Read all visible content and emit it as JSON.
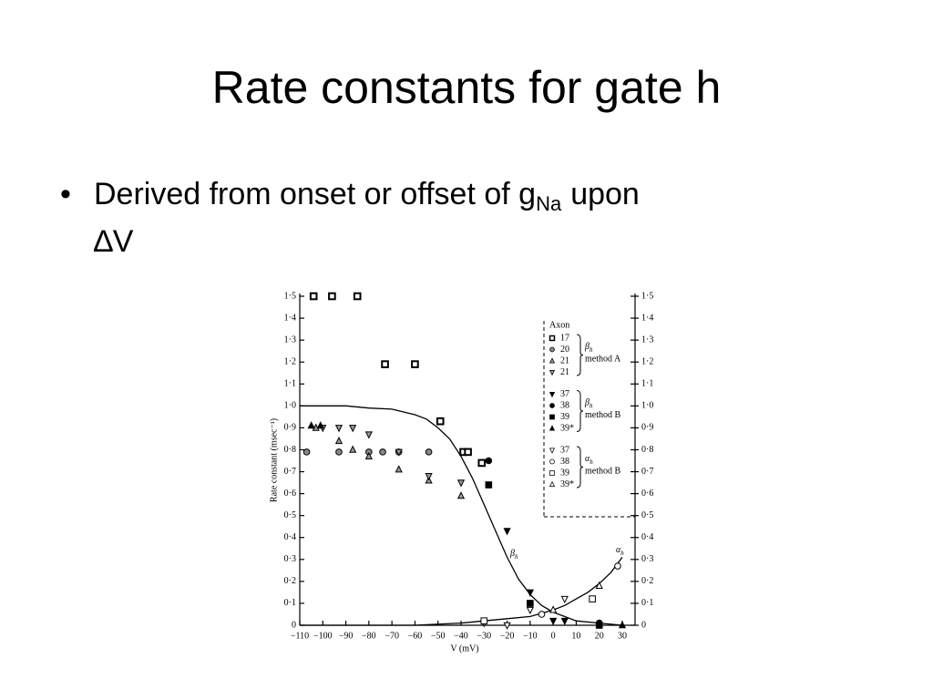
{
  "title": "Rate constants for gate h",
  "bullet": {
    "text": "Derived from onset or offset of g",
    "sub": "Na",
    "text2": "upon",
    "line2": "∆V"
  },
  "chart_data": {
    "type": "scatter",
    "ylabel": "Rate constant (msec⁻¹)",
    "xlabel": "V (mV)",
    "xlim": [
      -110,
      30
    ],
    "xticks": [
      {
        "value": -110,
        "label": "−110"
      },
      {
        "value": -100,
        "label": "−100"
      },
      {
        "value": -90,
        "label": "−90"
      },
      {
        "value": -80,
        "label": "−80"
      },
      {
        "value": -70,
        "label": "−70"
      },
      {
        "value": -60,
        "label": "−60"
      },
      {
        "value": -50,
        "label": "−50"
      },
      {
        "value": -40,
        "label": "−40"
      },
      {
        "value": -30,
        "label": "−30"
      },
      {
        "value": -20,
        "label": "−20"
      },
      {
        "value": -10,
        "label": "−10"
      },
      0,
      10,
      20,
      30
    ],
    "ylim": [
      0,
      1.5
    ],
    "yticks": [
      0,
      {
        "value": 0.1,
        "label": "0·1"
      },
      {
        "value": 0.2,
        "label": "0·2"
      },
      {
        "value": 0.3,
        "label": "0·3"
      },
      {
        "value": 0.4,
        "label": "0·4"
      },
      {
        "value": 0.5,
        "label": "0·5"
      },
      {
        "value": 0.6,
        "label": "0·6"
      },
      {
        "value": 0.7,
        "label": "0·7"
      },
      {
        "value": 0.8,
        "label": "0·8"
      },
      {
        "value": 0.9,
        "label": "0·9"
      },
      {
        "value": 1.0,
        "label": "1·0"
      },
      {
        "value": 1.1,
        "label": "1·1"
      },
      {
        "value": 1.2,
        "label": "1·2"
      },
      {
        "value": 1.3,
        "label": "1·3"
      },
      {
        "value": 1.4,
        "label": "1·4"
      },
      {
        "value": 1.5,
        "label": "1·5"
      }
    ],
    "y2lim": [
      0,
      1.5
    ],
    "y2ticks": [
      0,
      {
        "value": 0.1,
        "label": "0·1"
      },
      {
        "value": 0.2,
        "label": "0·2"
      },
      {
        "value": 0.3,
        "label": "0·3"
      },
      {
        "value": 0.4,
        "label": "0·4"
      },
      {
        "value": 0.5,
        "label": "0·5"
      },
      {
        "value": 0.6,
        "label": "0·6"
      },
      {
        "value": 0.7,
        "label": "0·7"
      },
      {
        "value": 0.8,
        "label": "0·8"
      },
      {
        "value": 0.9,
        "label": "0·9"
      },
      {
        "value": 1.0,
        "label": "1·0"
      },
      {
        "value": 1.1,
        "label": "1·1"
      },
      {
        "value": 1.2,
        "label": "1·2"
      },
      {
        "value": 1.3,
        "label": "1·3"
      },
      {
        "value": 1.4,
        "label": "1·4"
      },
      {
        "value": 1.5,
        "label": "1·5"
      }
    ],
    "legend_title": "Axon",
    "legend_groups": [
      {
        "symbol": "β",
        "sub": "h",
        "method": "method A"
      },
      {
        "symbol": "β",
        "sub": "h",
        "method": "method B"
      },
      {
        "symbol": "α",
        "sub": "h",
        "method": "method B"
      }
    ],
    "series": [
      {
        "name": "17",
        "color": "#000",
        "marker": "square-dot",
        "x": [
          -104,
          -96,
          -85,
          -73,
          -60,
          -49,
          -39,
          -37,
          -31
        ],
        "values": [
          1.5,
          1.5,
          1.5,
          1.19,
          1.19,
          0.93,
          0.79,
          0.79,
          0.74
        ]
      },
      {
        "name": "20",
        "color": "#000",
        "marker": "circle-half",
        "x": [
          -107,
          -93,
          -80,
          -74,
          -67,
          -54
        ],
        "values": [
          0.79,
          0.79,
          0.79,
          0.79,
          0.79,
          0.79
        ]
      },
      {
        "name": "21",
        "color": "#000",
        "marker": "triangle-up",
        "x": [
          -103,
          -93,
          -87,
          -80,
          -67,
          -54,
          -40
        ],
        "values": [
          0.9,
          0.84,
          0.8,
          0.77,
          0.71,
          0.66,
          0.59
        ]
      },
      {
        "name": "21",
        "color": "#000",
        "marker": "triangle-down",
        "x": [
          -100,
          -93,
          -87,
          -80,
          -67,
          -54,
          -40
        ],
        "values": [
          0.9,
          0.9,
          0.9,
          0.87,
          0.79,
          0.68,
          0.65
        ]
      },
      {
        "name": "37",
        "color": "#000",
        "marker": "triangle-down-filled",
        "x": [
          -20,
          -10,
          0,
          5
        ],
        "values": [
          0.43,
          0.15,
          0.02,
          0.02
        ]
      },
      {
        "name": "38",
        "color": "#000",
        "marker": "circle-filled",
        "x": [
          -28,
          -10,
          20
        ],
        "values": [
          0.75,
          0.1,
          0.01
        ]
      },
      {
        "name": "39",
        "color": "#000",
        "marker": "square-filled",
        "x": [
          -28,
          -10,
          20
        ],
        "values": [
          0.64,
          0.1,
          0
        ]
      },
      {
        "name": "39*",
        "color": "#000",
        "marker": "triangle-up-filled",
        "x": [
          -105,
          -101,
          30
        ],
        "values": [
          0.91,
          0.91,
          0
        ]
      },
      {
        "name": "37",
        "color": "#000",
        "marker": "triangle-down-open",
        "x": [
          -30,
          -20,
          -10,
          5
        ],
        "values": [
          0.01,
          0,
          0.07,
          0.12
        ]
      },
      {
        "name": "38",
        "color": "#000",
        "marker": "circle-open",
        "x": [
          -5,
          28
        ],
        "values": [
          0.05,
          0.27
        ]
      },
      {
        "name": "39",
        "color": "#000",
        "marker": "square-open",
        "x": [
          -30,
          17
        ],
        "values": [
          0.02,
          0.12
        ]
      },
      {
        "name": "39*",
        "color": "#000",
        "marker": "triangle-up-open",
        "x": [
          0,
          20
        ],
        "values": [
          0.07,
          0.18
        ]
      }
    ],
    "curves": [
      {
        "label": "β",
        "sub": "h",
        "color": "#000",
        "x": [
          -110,
          -100,
          -90,
          -80,
          -70,
          -60,
          -55,
          -50,
          -45,
          -40,
          -35,
          -30,
          -25,
          -20,
          -15,
          -10,
          -5,
          0,
          10,
          20,
          30
        ],
        "values": [
          1.0,
          1.0,
          1.0,
          0.99,
          0.985,
          0.96,
          0.94,
          0.9,
          0.85,
          0.77,
          0.67,
          0.55,
          0.43,
          0.31,
          0.21,
          0.14,
          0.09,
          0.06,
          0.02,
          0.01,
          0.0
        ]
      },
      {
        "label": "α",
        "sub": "h",
        "color": "#000",
        "x": [
          -110,
          -80,
          -60,
          -40,
          -30,
          -20,
          -10,
          0,
          5,
          10,
          15,
          20,
          25,
          30
        ],
        "values": [
          0,
          0,
          0,
          0.01,
          0.02,
          0.03,
          0.04,
          0.07,
          0.09,
          0.12,
          0.15,
          0.19,
          0.24,
          0.31
        ]
      }
    ]
  }
}
